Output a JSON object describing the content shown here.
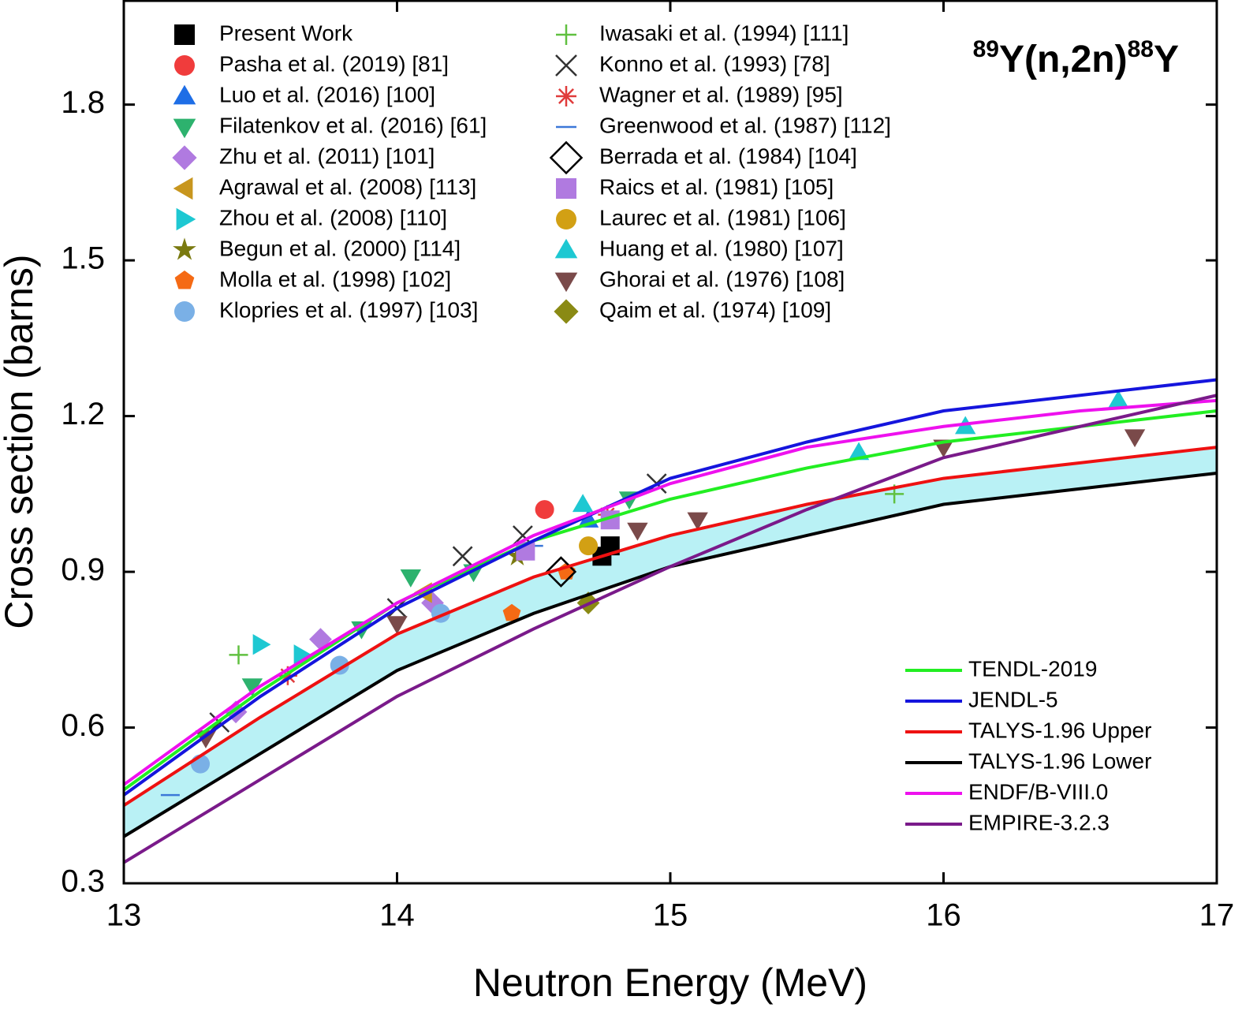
{
  "chart_data": {
    "type": "scatter",
    "title": [
      "89",
      "Y(n,2n)",
      "88",
      "Y"
    ],
    "x_label": "Neutron Energy (MeV)",
    "y_label": "Cross section (barns)",
    "xlim": [
      13,
      17
    ],
    "xticks": [
      13,
      14,
      15,
      16,
      17
    ],
    "ylim": [
      0.3,
      2.0
    ],
    "yticks": [
      0.3,
      0.6,
      0.9,
      1.2,
      1.5,
      1.8
    ],
    "band": {
      "series": [
        22,
        23
      ],
      "color": "#a8eef2"
    },
    "series": [
      {
        "name": "Present Work",
        "color": "#000000",
        "marker": "square",
        "x": [
          14.75,
          14.78
        ],
        "values": [
          0.93,
          0.95
        ]
      },
      {
        "name": "Pasha et al. (2019) [81]",
        "color": "#f03c3c",
        "marker": "circle",
        "x": [
          14.54
        ],
        "values": [
          1.02
        ]
      },
      {
        "name": "Luo et al. (2016) [100]",
        "color": "#1e6ee6",
        "marker": "triangle-up",
        "x": [
          14.7
        ],
        "values": [
          1.0
        ]
      },
      {
        "name": "Filatenkov et al. (2016) [61]",
        "color": "#2db26e",
        "marker": "triangle-down",
        "x": [
          13.47,
          13.87,
          14.05,
          14.28,
          14.85
        ],
        "values": [
          0.68,
          0.79,
          0.89,
          0.9,
          1.04
        ]
      },
      {
        "name": "Zhu et al. (2011) [101]",
        "color": "#b07ae0",
        "marker": "diamond",
        "x": [
          13.41,
          13.72,
          14.13
        ],
        "values": [
          0.63,
          0.77,
          0.84
        ]
      },
      {
        "name": "Agrawal et al. (2008) [113]",
        "color": "#c8961e",
        "marker": "triangle-left",
        "x": [
          14.1
        ],
        "values": [
          0.86
        ]
      },
      {
        "name": "Zhou et al. (2008) [110]",
        "color": "#1ec8d2",
        "marker": "triangle-right",
        "x": [
          13.5,
          13.65
        ],
        "values": [
          0.76,
          0.74
        ]
      },
      {
        "name": "Begun et al. (2000) [114]",
        "color": "#7a7a10",
        "marker": "star",
        "x": [
          14.44
        ],
        "values": [
          0.93
        ]
      },
      {
        "name": "Molla et al. (1998) [102]",
        "color": "#f56a14",
        "marker": "pentagon",
        "x": [
          14.42,
          14.62
        ],
        "values": [
          0.82,
          0.9
        ]
      },
      {
        "name": "Klopries et al. (1997) [103]",
        "color": "#7ab0e6",
        "marker": "circle",
        "x": [
          13.28,
          13.79,
          14.16
        ],
        "values": [
          0.53,
          0.72,
          0.82
        ]
      },
      {
        "name": "Iwasaki et al. (1994) [111]",
        "color": "#60c040",
        "marker": "plus",
        "x": [
          13.42,
          15.82
        ],
        "values": [
          0.74,
          1.05
        ]
      },
      {
        "name": "Konno et al. (1993) [78]",
        "color": "#333333",
        "marker": "cross",
        "x": [
          13.35,
          14.0,
          14.24,
          14.46,
          14.95
        ],
        "values": [
          0.61,
          0.83,
          0.93,
          0.97,
          1.07
        ]
      },
      {
        "name": "Wagner et al. (1989) [95]",
        "color": "#e03c3c",
        "marker": "asterisk",
        "x": [
          13.6,
          14.77
        ],
        "values": [
          0.7,
          1.01
        ]
      },
      {
        "name": "Greenwood et al. (1987) [112]",
        "color": "#3c78d8",
        "marker": "dash",
        "x": [
          13.17,
          14.5
        ],
        "values": [
          0.47,
          0.95
        ]
      },
      {
        "name": "Berrada et al. (1984) [104]",
        "color": "#000000",
        "marker": "open-diamond",
        "x": [
          14.6
        ],
        "values": [
          0.9
        ]
      },
      {
        "name": "Raics et al. (1981) [105]",
        "color": "#b07ae0",
        "marker": "square",
        "x": [
          14.47,
          14.78
        ],
        "values": [
          0.94,
          1.0
        ]
      },
      {
        "name": "Laurec et al. (1981) [106]",
        "color": "#d2a014",
        "marker": "circle",
        "x": [
          14.7
        ],
        "values": [
          0.95
        ]
      },
      {
        "name": "Huang et al. (1980) [107]",
        "color": "#1ec8d2",
        "marker": "triangle-up",
        "x": [
          14.68,
          15.69,
          16.08,
          16.64
        ],
        "values": [
          1.03,
          1.13,
          1.18,
          1.23
        ]
      },
      {
        "name": "Ghorai et al. (1976) [108]",
        "color": "#7a4a4a",
        "marker": "triangle-down",
        "x": [
          13.3,
          14.0,
          14.88,
          15.1,
          16.0,
          16.7
        ],
        "values": [
          0.58,
          0.8,
          0.98,
          1.0,
          1.14,
          1.16
        ]
      },
      {
        "name": "Qaim et al. (1974) [109]",
        "color": "#8a8a14",
        "marker": "diamond",
        "x": [
          14.7
        ],
        "values": [
          0.84
        ]
      },
      {
        "name": "TENDL-2019",
        "color": "#22ee22",
        "line": true,
        "x": [
          13,
          13.5,
          14,
          14.5,
          15,
          15.5,
          16,
          16.5,
          17
        ],
        "values": [
          0.48,
          0.67,
          0.84,
          0.96,
          1.04,
          1.1,
          1.15,
          1.18,
          1.21
        ]
      },
      {
        "name": "JENDL-5",
        "color": "#1515dd",
        "line": true,
        "x": [
          13,
          13.5,
          14,
          14.5,
          15,
          15.5,
          16,
          16.5,
          17
        ],
        "values": [
          0.47,
          0.66,
          0.83,
          0.96,
          1.08,
          1.15,
          1.21,
          1.24,
          1.27
        ]
      },
      {
        "name": "TALYS-1.96 Upper",
        "color": "#ee1111",
        "line": true,
        "x": [
          13,
          13.5,
          14,
          14.5,
          15,
          15.5,
          16,
          16.5,
          17
        ],
        "values": [
          0.45,
          0.62,
          0.78,
          0.89,
          0.97,
          1.03,
          1.08,
          1.11,
          1.14
        ]
      },
      {
        "name": "TALYS-1.96 Lower",
        "color": "#000000",
        "line": true,
        "x": [
          13,
          13.5,
          14,
          14.5,
          15,
          15.5,
          16,
          16.5,
          17
        ],
        "values": [
          0.39,
          0.55,
          0.71,
          0.82,
          0.91,
          0.97,
          1.03,
          1.06,
          1.09
        ]
      },
      {
        "name": "ENDF/B-VIII.0",
        "color": "#ee11ee",
        "line": true,
        "x": [
          13,
          13.5,
          14,
          14.5,
          15,
          15.5,
          16,
          16.5,
          17
        ],
        "values": [
          0.49,
          0.68,
          0.84,
          0.97,
          1.07,
          1.14,
          1.18,
          1.21,
          1.23
        ]
      },
      {
        "name": "EMPIRE-3.2.3",
        "color": "#7a1a8a",
        "line": true,
        "x": [
          13,
          13.5,
          14,
          14.5,
          15,
          15.5,
          16,
          16.5,
          17
        ],
        "values": [
          0.34,
          0.5,
          0.66,
          0.79,
          0.91,
          1.02,
          1.12,
          1.18,
          1.24
        ]
      }
    ]
  }
}
